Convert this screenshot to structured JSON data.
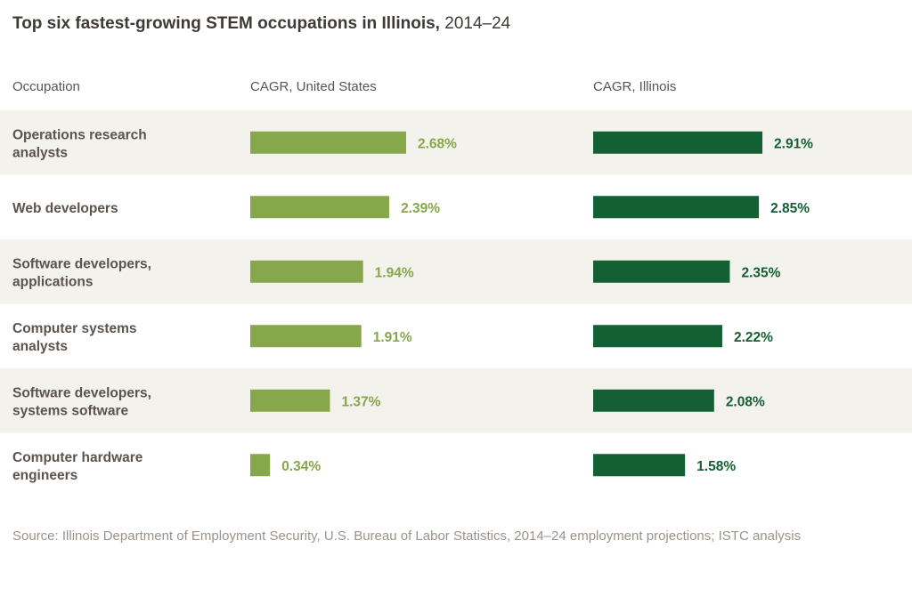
{
  "chart_data": {
    "type": "bar",
    "title": "Top six fastest-growing STEM occupations in Illinois,",
    "title_range": "2014–24",
    "column_headers": [
      "Occupation",
      "CAGR, United States",
      "CAGR, Illinois"
    ],
    "categories": [
      "Operations research analysts",
      "Web developers",
      "Software developers, applications",
      "Computer systems analysts",
      "Software developers, systems software",
      "Computer hardware engineers"
    ],
    "category_lines": [
      [
        "Operations research",
        "analysts"
      ],
      [
        "Web developers"
      ],
      [
        "Software developers,",
        "applications"
      ],
      [
        "Computer systems",
        "analysts"
      ],
      [
        "Software developers,",
        "systems software"
      ],
      [
        "Computer hardware",
        "engineers"
      ]
    ],
    "series": [
      {
        "name": "CAGR, United States",
        "values": [
          2.68,
          2.39,
          1.94,
          1.91,
          1.37,
          0.34
        ],
        "labels": [
          "2.68%",
          "2.39%",
          "1.94%",
          "1.91%",
          "1.37%",
          "0.34%"
        ],
        "color": "#86a74b"
      },
      {
        "name": "CAGR, Illinois",
        "values": [
          2.91,
          2.85,
          2.35,
          2.22,
          2.08,
          1.58
        ],
        "labels": [
          "2.91%",
          "2.85%",
          "2.35%",
          "2.22%",
          "2.08%",
          "1.58%"
        ],
        "color": "#155f35"
      }
    ],
    "row_shading": "#f4f2ec",
    "source": "Source: Illinois Department of Employment Security, U.S. Bureau of Labor Statistics, 2014–24 employment projections; ISTC analysis"
  }
}
